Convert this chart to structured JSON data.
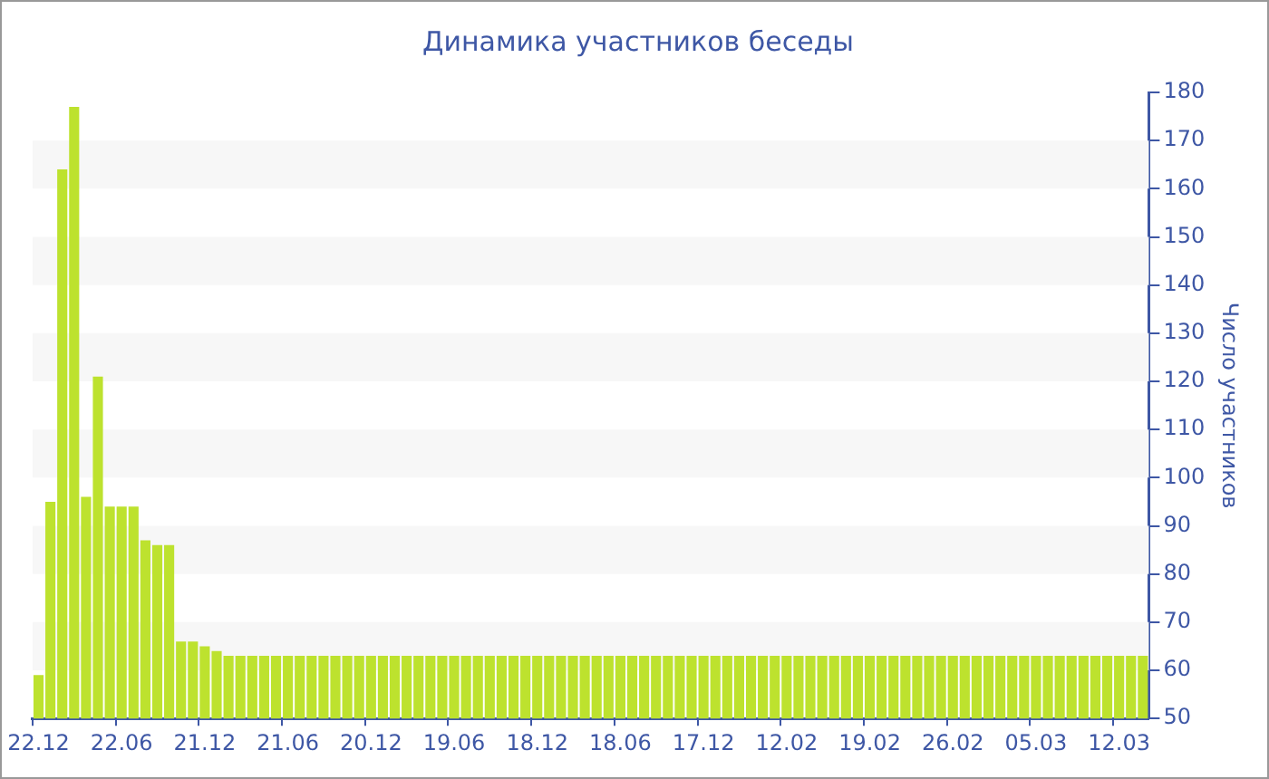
{
  "chart_data": {
    "type": "bar",
    "title": "Динамика участников беседы",
    "ylabel": "Число участников",
    "categories": [
      "22.12",
      null,
      null,
      null,
      null,
      null,
      null,
      "22.06",
      null,
      null,
      null,
      null,
      null,
      null,
      "21.12",
      null,
      null,
      null,
      null,
      null,
      null,
      "21.06",
      null,
      null,
      null,
      null,
      null,
      null,
      "20.12",
      null,
      null,
      null,
      null,
      null,
      null,
      "19.06",
      null,
      null,
      null,
      null,
      null,
      null,
      "18.12",
      null,
      null,
      null,
      null,
      null,
      null,
      "18.06",
      null,
      null,
      null,
      null,
      null,
      null,
      "17.12",
      null,
      null,
      null,
      null,
      null,
      null,
      "12.02",
      null,
      null,
      null,
      null,
      null,
      null,
      "19.02",
      null,
      null,
      null,
      null,
      null,
      null,
      "26.02",
      null,
      null,
      null,
      null,
      null,
      null,
      "05.03",
      null,
      null,
      null,
      null,
      null,
      null,
      "12.03",
      null,
      null
    ],
    "values": [
      59,
      95,
      164,
      177,
      96,
      121,
      94,
      94,
      94,
      87,
      86,
      86,
      66,
      66,
      65,
      64,
      63,
      63,
      63,
      63,
      63,
      63,
      63,
      63,
      63,
      63,
      63,
      63,
      63,
      63,
      63,
      63,
      63,
      63,
      63,
      63,
      63,
      63,
      63,
      63,
      63,
      63,
      63,
      63,
      63,
      63,
      63,
      63,
      63,
      63,
      63,
      63,
      63,
      63,
      63,
      63,
      63,
      63,
      63,
      63,
      63,
      63,
      63,
      63,
      63,
      63,
      63,
      63,
      63,
      63,
      63,
      63,
      63,
      63,
      63,
      63,
      63,
      63,
      63,
      63,
      63,
      63,
      63,
      63,
      63,
      63,
      63,
      63,
      63,
      63,
      63,
      63,
      63,
      63
    ],
    "color": "#bde22e",
    "ylim": [
      50,
      180
    ],
    "yticks": [
      50,
      60,
      70,
      80,
      90,
      100,
      110,
      120,
      130,
      140,
      150,
      160,
      170,
      180
    ],
    "legend": false
  }
}
